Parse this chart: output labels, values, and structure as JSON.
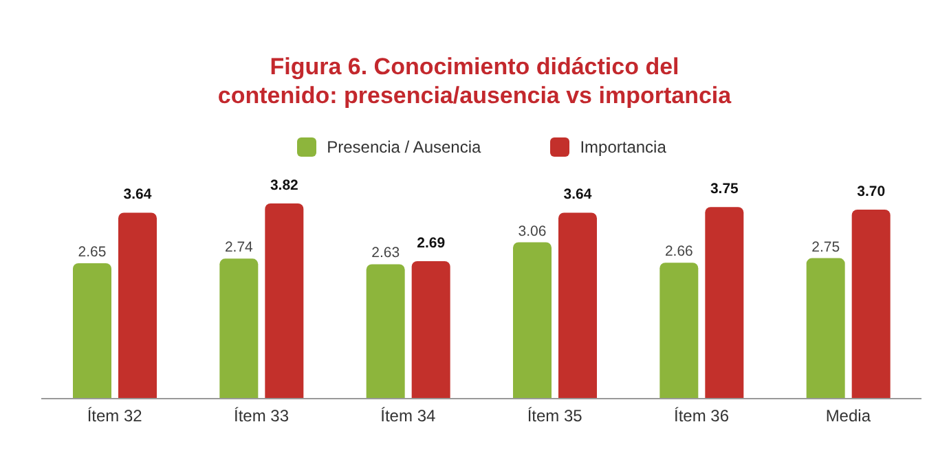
{
  "chart_data": {
    "type": "bar",
    "title": "Figura 6. Conocimiento didáctico del contenido: presencia/ausencia vs importancia",
    "categories": [
      "Ítem 32",
      "Ítem 33",
      "Ítem 34",
      "Ítem 35",
      "Ítem 36",
      "Media"
    ],
    "series": [
      {
        "name": "Presencia / Ausencia",
        "color": "#8db53c",
        "values": [
          2.65,
          2.74,
          2.63,
          3.06,
          2.66,
          2.75
        ],
        "value_labels": [
          "2.65",
          "2.74",
          "2.63",
          "3.06",
          "2.66",
          "2.75"
        ]
      },
      {
        "name": "Importancia",
        "color": "#c3302b",
        "values": [
          3.64,
          3.82,
          2.69,
          3.64,
          3.75,
          3.7
        ],
        "value_labels": [
          "3.64",
          "3.82",
          "2.69",
          "3.64",
          "3.75",
          "3.70"
        ]
      }
    ],
    "legend": "top",
    "grid": false
  }
}
